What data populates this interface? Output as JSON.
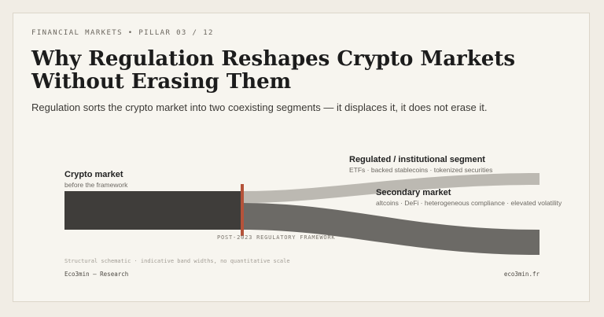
{
  "eyebrow": "FINANCIAL MARKETS  •  PILLAR 03 / 12",
  "title": "Why Regulation Reshapes Crypto Markets Without Erasing Them",
  "subtitle": "Regulation sorts the crypto market into two coexisting segments — it displaces it, it does not erase it.",
  "diagram": {
    "source": {
      "label": "Crypto market",
      "sublabel": "before the framework",
      "color": "#3f3d3a"
    },
    "divider": {
      "label": "POST-2023 REGULATORY FRAMEWORK",
      "color": "#b5533a"
    },
    "flows": [
      {
        "label": "Regulated / institutional segment",
        "sublabel": "ETFs · backed stablecoins · tokenized securities",
        "color": "#bcb9b2"
      },
      {
        "label": "Secondary market",
        "sublabel": "altcoins · DeFi · heterogeneous compliance · elevated volatility",
        "color": "#6c6a66"
      }
    ]
  },
  "footnote": "Structural schematic · indicative band widths, no quantitative scale",
  "footer": {
    "left": "Eco3min — Research",
    "right": "eco3min.fr"
  }
}
